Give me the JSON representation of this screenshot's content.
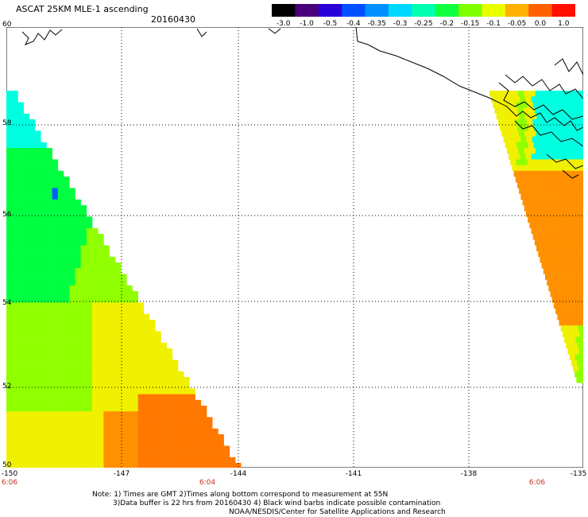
{
  "header": {
    "title": "ASCAT 25KM MLE-1 ascending",
    "date": "20160430"
  },
  "colorbar": {
    "labels": [
      "-3.0",
      "-1.0",
      "-0.5",
      "-0.4",
      "-0.35",
      "-0.3",
      "-0.25",
      "-0.2",
      "-0.15",
      "-0.1",
      "-0.05",
      "0.0",
      "1.0"
    ],
    "colors": [
      "#000000",
      "#4a007a",
      "#2a00d8",
      "#0050ff",
      "#0090ff",
      "#00d8ff",
      "#00ffb0",
      "#10ff40",
      "#80ff00",
      "#e8ff00",
      "#ffb000",
      "#ff6000",
      "#ff1000"
    ]
  },
  "map": {
    "lat_labels": [
      "60",
      "58",
      "56",
      "54",
      "52",
      "50"
    ],
    "lon_labels": [
      "-150",
      "-147",
      "-144",
      "-141",
      "-138",
      "-135"
    ],
    "pass_times": [
      "6:06",
      "6:04",
      "6:06"
    ],
    "colors": {
      "cyan": "#00ffe0",
      "green": "#00ff40",
      "lime": "#90ff00",
      "yellow": "#f0f000",
      "orange": "#ff9000",
      "dark_orange": "#ff7800",
      "blue": "#0060ff"
    }
  },
  "notes": {
    "line1": "Note: 1) Times are GMT 2)Times along bottom correspond to measurement at 55N",
    "line2": "3)Data buffer is 22 hrs from 20160430 4) Black wind barbs indicate possible contamination",
    "line3": "NOAA/NESDIS/Center for Satellite Applications and Research"
  }
}
